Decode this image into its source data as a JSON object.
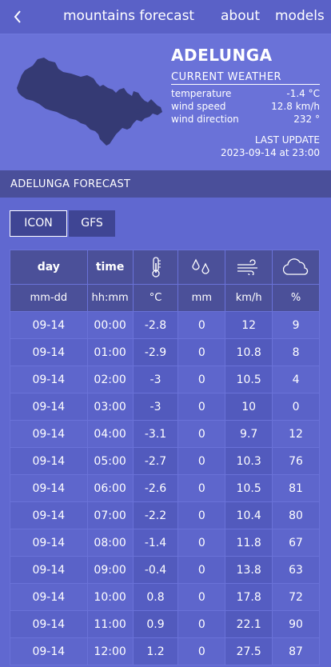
{
  "nav": {
    "back_icon": "chevron-left-icon",
    "title": "mountains forecast",
    "about": "about",
    "models": "models"
  },
  "location": {
    "name": "ADELUNGA",
    "current_weather_label": "CURRENT WEATHER",
    "temperature_label": "temperature",
    "temperature_value": "-1.4 °C",
    "wind_speed_label": "wind speed",
    "wind_speed_value": "12.8 km/h",
    "wind_direction_label": "wind direction",
    "wind_direction_value": "232 °",
    "last_update_label": "LAST UPDATE",
    "last_update_value": "2023-09-14 at 23:00"
  },
  "forecast": {
    "section_title": "ADELUNGA FORECAST",
    "tabs": [
      "ICON",
      "GFS"
    ],
    "active_tab": "ICON",
    "header_labels": [
      "day",
      "time"
    ],
    "header_icons": [
      "thermometer-icon",
      "raindrops-icon",
      "wind-icon",
      "cloud-icon"
    ],
    "units": [
      "mm-dd",
      "hh:mm",
      "°C",
      "mm",
      "km/h",
      "%"
    ],
    "rows": [
      [
        "09-14",
        "00:00",
        "-2.8",
        "0",
        "12",
        "9"
      ],
      [
        "09-14",
        "01:00",
        "-2.9",
        "0",
        "10.8",
        "8"
      ],
      [
        "09-14",
        "02:00",
        "-3",
        "0",
        "10.5",
        "4"
      ],
      [
        "09-14",
        "03:00",
        "-3",
        "0",
        "10",
        "0"
      ],
      [
        "09-14",
        "04:00",
        "-3.1",
        "0",
        "9.7",
        "12"
      ],
      [
        "09-14",
        "05:00",
        "-2.7",
        "0",
        "10.3",
        "76"
      ],
      [
        "09-14",
        "06:00",
        "-2.6",
        "0",
        "10.5",
        "81"
      ],
      [
        "09-14",
        "07:00",
        "-2.2",
        "0",
        "10.4",
        "80"
      ],
      [
        "09-14",
        "08:00",
        "-1.4",
        "0",
        "11.8",
        "67"
      ],
      [
        "09-14",
        "09:00",
        "-0.4",
        "0",
        "13.8",
        "63"
      ],
      [
        "09-14",
        "10:00",
        "0.8",
        "0",
        "17.8",
        "72"
      ],
      [
        "09-14",
        "11:00",
        "0.9",
        "0",
        "22.1",
        "90"
      ],
      [
        "09-14",
        "12:00",
        "1.2",
        "0",
        "27.5",
        "87"
      ]
    ]
  }
}
